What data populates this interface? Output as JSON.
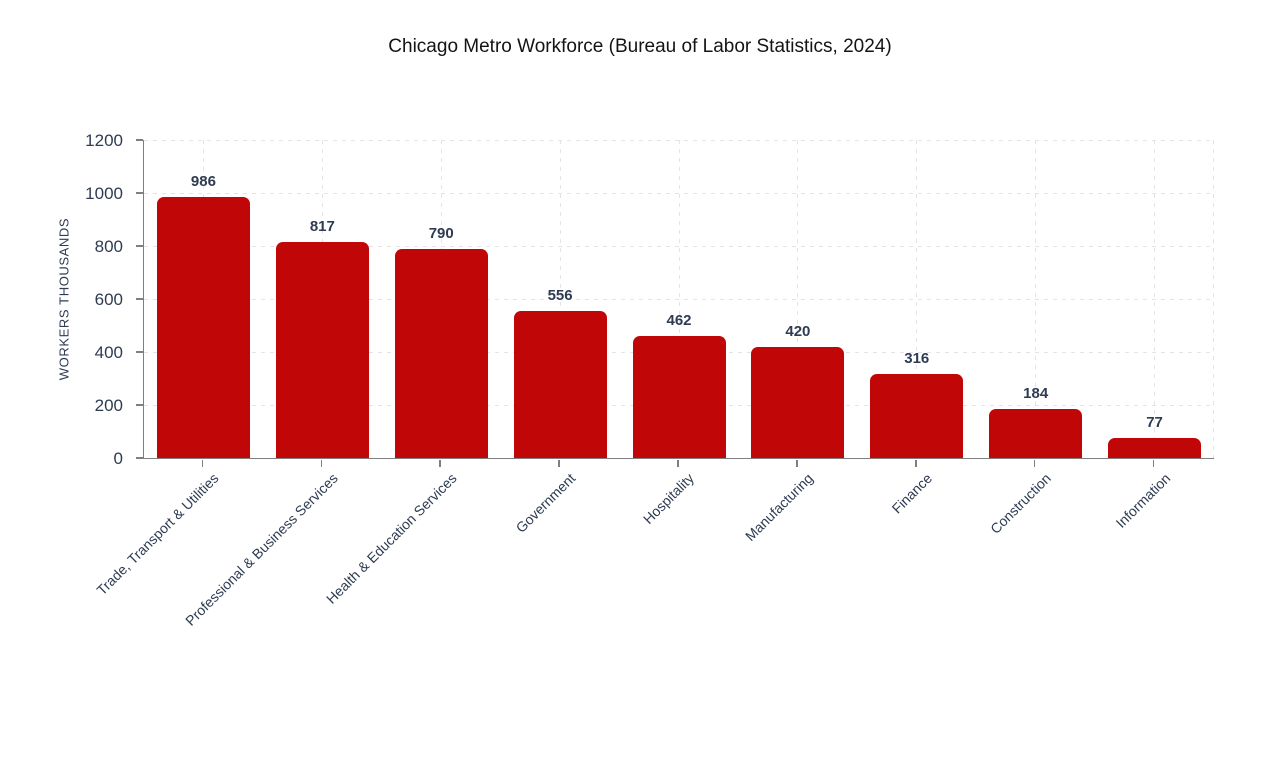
{
  "chart_data": {
    "type": "bar",
    "title": "Chicago Metro Workforce (Bureau of Labor Statistics, 2024)",
    "ylabel": "WORKERS THOUSANDS",
    "xlabel": "",
    "categories": [
      "Trade, Transport & Utilities",
      "Professional & Business Services",
      "Health & Education Services",
      "Government",
      "Hospitality",
      "Manufacturing",
      "Finance",
      "Construction",
      "Information"
    ],
    "values": [
      986,
      817,
      790,
      556,
      462,
      420,
      316,
      184,
      77
    ],
    "ylim": [
      0,
      1200
    ],
    "yticks": [
      0,
      200,
      400,
      600,
      800,
      1000,
      1200
    ],
    "grid": "dashed-horizontal-and-vertical",
    "legend_position": "none",
    "colors": {
      "bar": "#c00606",
      "label_text": "#2e3b52",
      "axis": "#7f7f7f",
      "gridline": "#e3e3e8",
      "title_text": "#141414",
      "background": "#ffffff"
    }
  }
}
